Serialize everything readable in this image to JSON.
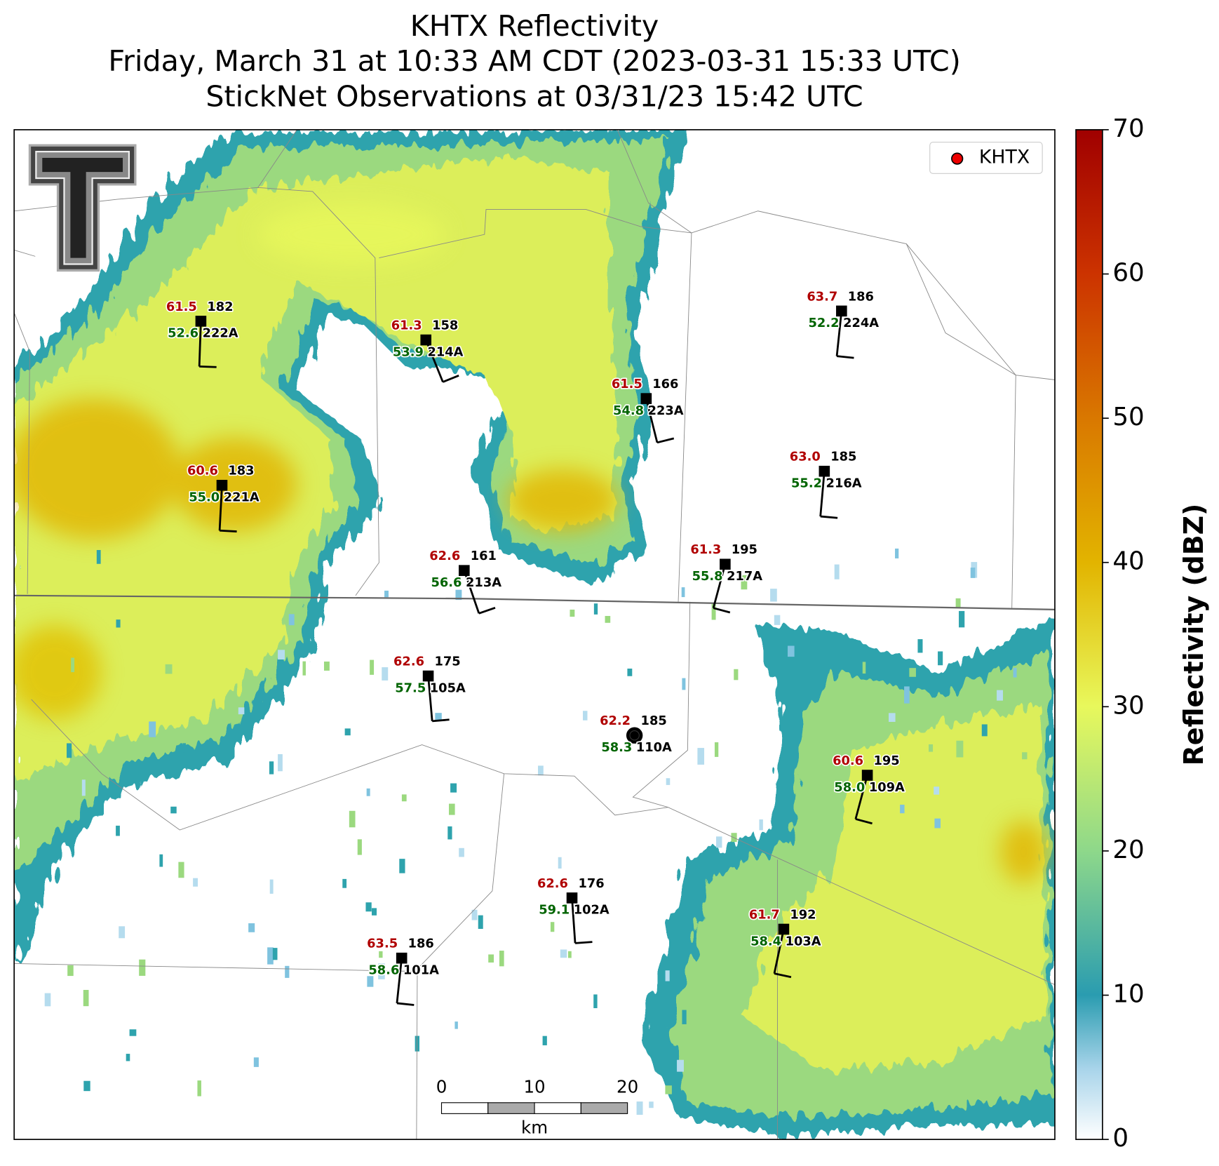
{
  "header": {
    "title_lines": [
      "KHTX Reflectivity",
      "Friday, March 31 at 10:33 AM CDT (2023-03-31 15:33 UTC)",
      "StickNet Observations at 03/31/23 15:42 UTC"
    ]
  },
  "legend": {
    "label": "KHTX"
  },
  "colorbar": {
    "label": "Reflectivity (dBZ)",
    "lim": [
      0,
      70
    ],
    "ticks": [
      0,
      10,
      20,
      30,
      40,
      50,
      60,
      70
    ]
  },
  "scale_bar": {
    "ticks": [
      0,
      10,
      20
    ],
    "unit": "km"
  },
  "stations": [
    {
      "id": "222A",
      "temperature": "61.5",
      "dewpoint": "52.6",
      "direction": 182
    },
    {
      "id": "214A",
      "temperature": "61.3",
      "dewpoint": "53.9",
      "direction": 158
    },
    {
      "id": "224A",
      "temperature": "63.7",
      "dewpoint": "52.2",
      "direction": 186
    },
    {
      "id": "223A",
      "temperature": "61.5",
      "dewpoint": "54.8",
      "direction": 166
    },
    {
      "id": "221A",
      "temperature": "60.6",
      "dewpoint": "55.0",
      "direction": 183
    },
    {
      "id": "216A",
      "temperature": "63.0",
      "dewpoint": "55.2",
      "direction": 185
    },
    {
      "id": "213A",
      "temperature": "62.6",
      "dewpoint": "56.6",
      "direction": 161
    },
    {
      "id": "217A",
      "temperature": "61.3",
      "dewpoint": "55.8",
      "direction": 195
    },
    {
      "id": "105A",
      "temperature": "62.6",
      "dewpoint": "57.5",
      "direction": 175
    },
    {
      "id": "110A",
      "temperature": "62.2",
      "dewpoint": "58.3",
      "direction": 185
    },
    {
      "id": "109A",
      "temperature": "60.6",
      "dewpoint": "58.0",
      "direction": 195
    },
    {
      "id": "102A",
      "temperature": "62.6",
      "dewpoint": "59.1",
      "direction": 176
    },
    {
      "id": "103A",
      "temperature": "61.7",
      "dewpoint": "58.4",
      "direction": 192
    },
    {
      "id": "101A",
      "temperature": "63.5",
      "dewpoint": "58.6",
      "direction": 186
    }
  ]
}
